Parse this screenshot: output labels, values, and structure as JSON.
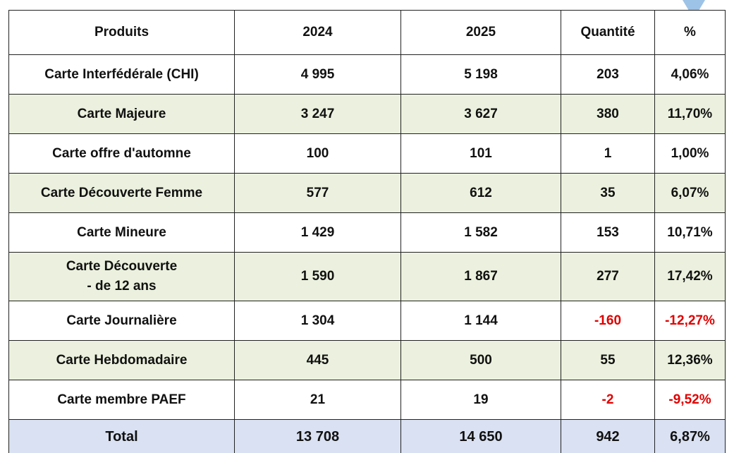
{
  "table": {
    "header": [
      "Produits",
      "2024",
      "2025",
      "Quantité",
      "%"
    ],
    "rows": [
      [
        "Carte Interfédérale (CHI)",
        "4 995",
        "5 198",
        "203",
        "4,06%"
      ],
      [
        "Carte Majeure",
        "3 247",
        "3 627",
        "380",
        "11,70%"
      ],
      [
        "Carte offre d'automne",
        "100",
        "101",
        "1",
        "1,00%"
      ],
      [
        "Carte Découverte Femme",
        "577",
        "612",
        "35",
        "6,07%"
      ],
      [
        "Carte Mineure",
        "1 429",
        "1 582",
        "153",
        "10,71%"
      ],
      [
        "Carte Découverte\n- de 12 ans",
        "1 590",
        "1 867",
        "277",
        "17,42%"
      ],
      [
        "Carte Journalière",
        "1 304",
        "1 144",
        "-160",
        "-12,27%"
      ],
      [
        "Carte Hebdomadaire",
        "445",
        "500",
        "55",
        "12,36%"
      ],
      [
        "Carte membre PAEF",
        "21",
        "19",
        "-2",
        "-9,52%"
      ]
    ],
    "total": [
      "Total",
      "13 708",
      "14 650",
      "942",
      "6,87%"
    ]
  }
}
